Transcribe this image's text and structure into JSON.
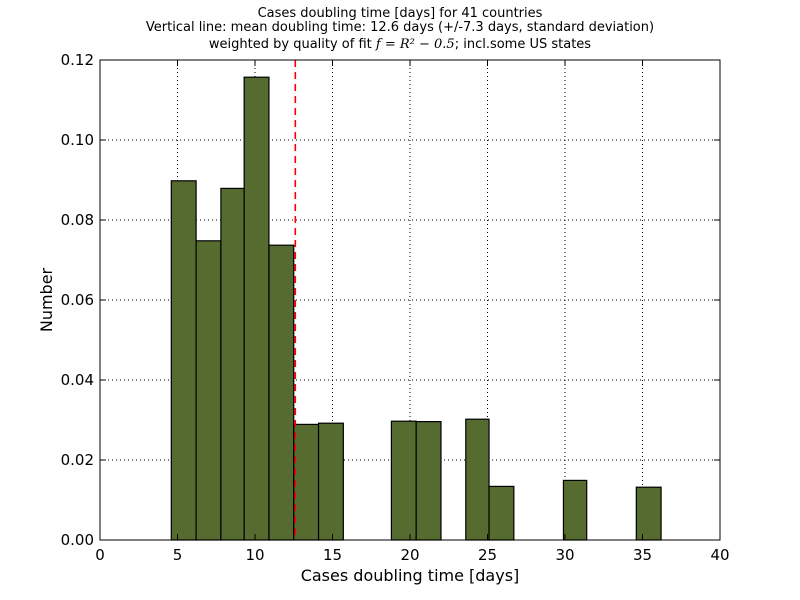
{
  "title": {
    "line1": "Cases doubling time [days] for 41 countries",
    "line2": "Vertical line: mean doubling time: 12.6 days (+/-7.3 days, standard deviation)",
    "line3_prefix": "weighted by quality of fit ",
    "line3_math": "f = R² − 0.5",
    "line3_suffix": "; incl.some US states"
  },
  "chart_data": {
    "type": "bar",
    "subtype": "histogram",
    "xlabel": "Cases doubling time [days]",
    "ylabel": "Number",
    "xlim": [
      0,
      40
    ],
    "ylim": [
      0,
      0.12
    ],
    "xticks": [
      0,
      5,
      10,
      15,
      20,
      25,
      30,
      35,
      40
    ],
    "xtick_labels": [
      "0",
      "5",
      "10",
      "15",
      "20",
      "25",
      "30",
      "35",
      "40"
    ],
    "yticks": [
      0.0,
      0.02,
      0.04,
      0.06,
      0.08,
      0.1,
      0.12
    ],
    "ytick_labels": [
      "0.00",
      "0.02",
      "0.04",
      "0.06",
      "0.08",
      "0.10",
      "0.12"
    ],
    "grid": true,
    "bars": [
      {
        "x0": 4.6,
        "x1": 6.2,
        "value": 0.0898
      },
      {
        "x0": 6.2,
        "x1": 7.8,
        "value": 0.0748
      },
      {
        "x0": 7.8,
        "x1": 9.3,
        "value": 0.0879
      },
      {
        "x0": 9.3,
        "x1": 10.9,
        "value": 0.1157
      },
      {
        "x0": 10.9,
        "x1": 12.5,
        "value": 0.0737
      },
      {
        "x0": 12.5,
        "x1": 14.1,
        "value": 0.0289
      },
      {
        "x0": 14.1,
        "x1": 15.7,
        "value": 0.0292
      },
      {
        "x0": 18.8,
        "x1": 20.4,
        "value": 0.0297
      },
      {
        "x0": 20.4,
        "x1": 22.0,
        "value": 0.0296
      },
      {
        "x0": 23.6,
        "x1": 25.1,
        "value": 0.0302
      },
      {
        "x0": 25.1,
        "x1": 26.7,
        "value": 0.0134
      },
      {
        "x0": 29.9,
        "x1": 31.4,
        "value": 0.0149
      },
      {
        "x0": 34.6,
        "x1": 36.2,
        "value": 0.0132
      }
    ],
    "bar_color": "#556b2f",
    "mean_line": {
      "x": 12.6,
      "color": "#ff0000",
      "style": "dashed"
    }
  }
}
